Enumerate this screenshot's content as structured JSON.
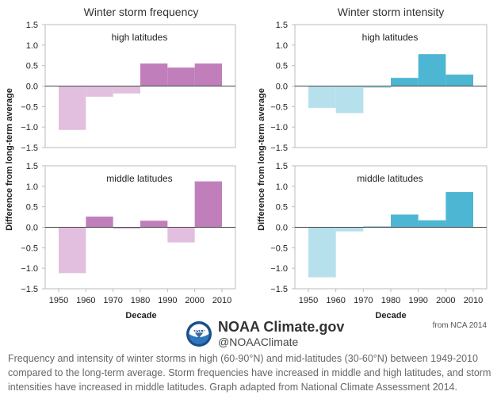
{
  "colors": {
    "frequency_positive": "#c07ebb",
    "frequency_negative": "#e2bfde",
    "intensity_positive": "#4cb6d3",
    "intensity_negative": "#b6e0eb",
    "grid": "#bbbbbb",
    "zero_line": "#444444"
  },
  "chart_data": [
    {
      "type": "bar",
      "title": "Winter storm frequency",
      "subtitle": "high latitudes",
      "ylabel": "Difference from long-term average",
      "xlabel": "",
      "ylim": [
        -1.5,
        1.5
      ],
      "yticks": [
        "1.5",
        "1.0",
        "0.5",
        "0.0",
        "-0.5",
        "-1.0",
        "-1.5"
      ],
      "categories": [
        "1950-1960",
        "1960-1970",
        "1970-1980",
        "1980-1990",
        "1990-2000",
        "2000-2010"
      ],
      "values": [
        -1.07,
        -0.26,
        -0.18,
        0.55,
        0.45,
        0.55
      ],
      "xticks": [],
      "grid": false
    },
    {
      "type": "bar",
      "title": "Winter storm intensity",
      "subtitle": "high latitudes",
      "ylabel": "Difference from long-term average",
      "xlabel": "",
      "ylim": [
        -1.5,
        1.5
      ],
      "yticks": [
        "1.5",
        "1.0",
        "0.5",
        "0.0",
        "-0.5",
        "-1.0",
        "-1.5"
      ],
      "categories": [
        "1950-1960",
        "1960-1970",
        "1970-1980",
        "1980-1990",
        "1990-2000",
        "2000-2010"
      ],
      "values": [
        -0.53,
        -0.66,
        -0.05,
        0.2,
        0.78,
        0.28
      ],
      "xticks": [],
      "grid": false
    },
    {
      "type": "bar",
      "title": "",
      "subtitle": "middle latitudes",
      "ylabel": "Difference from long-term average",
      "xlabel": "Decade",
      "ylim": [
        -1.5,
        1.5
      ],
      "yticks": [
        "1.5",
        "1.0",
        "0.5",
        "0.0",
        "-0.5",
        "-1.0",
        "-1.5"
      ],
      "categories": [
        "1950-1960",
        "1960-1970",
        "1970-1980",
        "1980-1990",
        "1990-2000",
        "2000-2010"
      ],
      "values": [
        -1.12,
        0.26,
        -0.04,
        0.16,
        -0.37,
        1.12
      ],
      "xticks": [
        "1950",
        "1960",
        "1970",
        "1980",
        "1990",
        "2000",
        "2010"
      ],
      "grid": false
    },
    {
      "type": "bar",
      "title": "",
      "subtitle": "middle latitudes",
      "ylabel": "Difference from long-term average",
      "xlabel": "Decade",
      "ylim": [
        -1.5,
        1.5
      ],
      "yticks": [
        "1.5",
        "1.0",
        "0.5",
        "0.0",
        "-0.5",
        "-1.0",
        "-1.5"
      ],
      "categories": [
        "1950-1960",
        "1960-1970",
        "1970-1980",
        "1980-1990",
        "1990-2000",
        "2000-2010"
      ],
      "values": [
        -1.22,
        -0.1,
        0.02,
        0.31,
        0.17,
        0.86
      ],
      "xticks": [
        "1950",
        "1960",
        "1970",
        "1980",
        "1990",
        "2000",
        "2010"
      ],
      "grid": false
    }
  ],
  "credit": "from NCA 2014",
  "brand": {
    "name": "NOAA Climate.gov",
    "handle": "@NOAAClimate",
    "logo_text": "NOAA",
    "logo_icon": "noaa-logo-icon"
  },
  "caption": "Frequency and intensity of winter storms in high (60-90°N) and mid-latitudes (30-60°N) between 1949-2010 compared to the long-term average. Storm frequencies have increased in middle and high latitudes, and storm intensities have increased in middle latitudes. Graph adapted from National Climate Assessment 2014."
}
